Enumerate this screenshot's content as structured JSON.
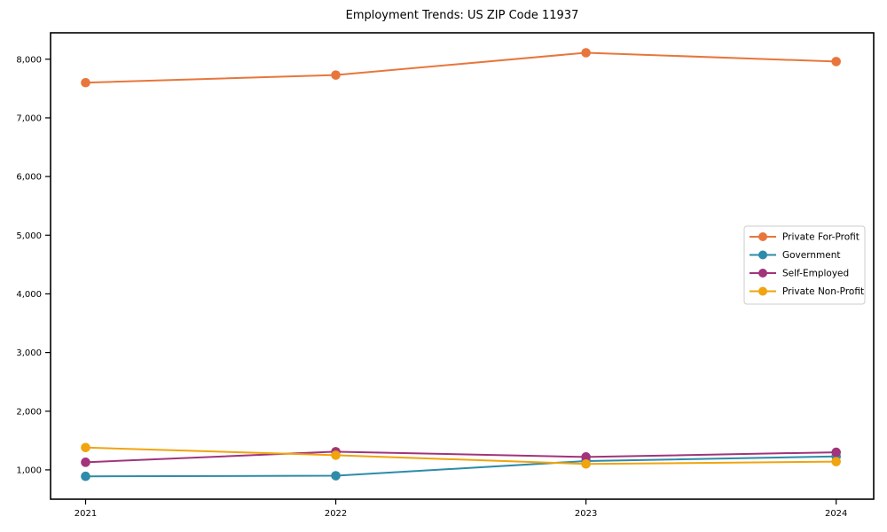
{
  "figure": {
    "title": "Employment Trends: US ZIP Code 11937"
  },
  "chart_data": {
    "type": "line",
    "title": "Employment Trends: US ZIP Code 11937",
    "xlabel": "",
    "ylabel": "",
    "x": [
      2021,
      2022,
      2023,
      2024
    ],
    "xtick_labels": [
      "2021",
      "2022",
      "2023",
      "2024"
    ],
    "yticks": [
      1000,
      2000,
      3000,
      4000,
      5000,
      6000,
      7000,
      8000
    ],
    "ytick_labels": [
      "1,000",
      "2,000",
      "3,000",
      "4,000",
      "5,000",
      "6,000",
      "7,000",
      "8,000"
    ],
    "xlim": [
      2020.86,
      2024.15
    ],
    "ylim": [
      500,
      8450
    ],
    "grid": false,
    "marker": "circle",
    "legend_position": "right-center",
    "series": [
      {
        "name": "Private For-Profit",
        "color": "#E8763C",
        "values": [
          7600,
          7730,
          8110,
          7960
        ]
      },
      {
        "name": "Government",
        "color": "#2E8BA9",
        "values": [
          890,
          900,
          1150,
          1230
        ]
      },
      {
        "name": "Self-Employed",
        "color": "#A1347A",
        "values": [
          1130,
          1310,
          1220,
          1300
        ]
      },
      {
        "name": "Private Non-Profit",
        "color": "#F0A40E",
        "values": [
          1380,
          1250,
          1100,
          1140
        ]
      }
    ],
    "style": {
      "spine_color": "#000000",
      "tick_color": "#000000",
      "text_color": "#000000",
      "legend_border_color": "#cccccc",
      "legend_bg_color": "#ffffff",
      "background": "#ffffff"
    }
  }
}
